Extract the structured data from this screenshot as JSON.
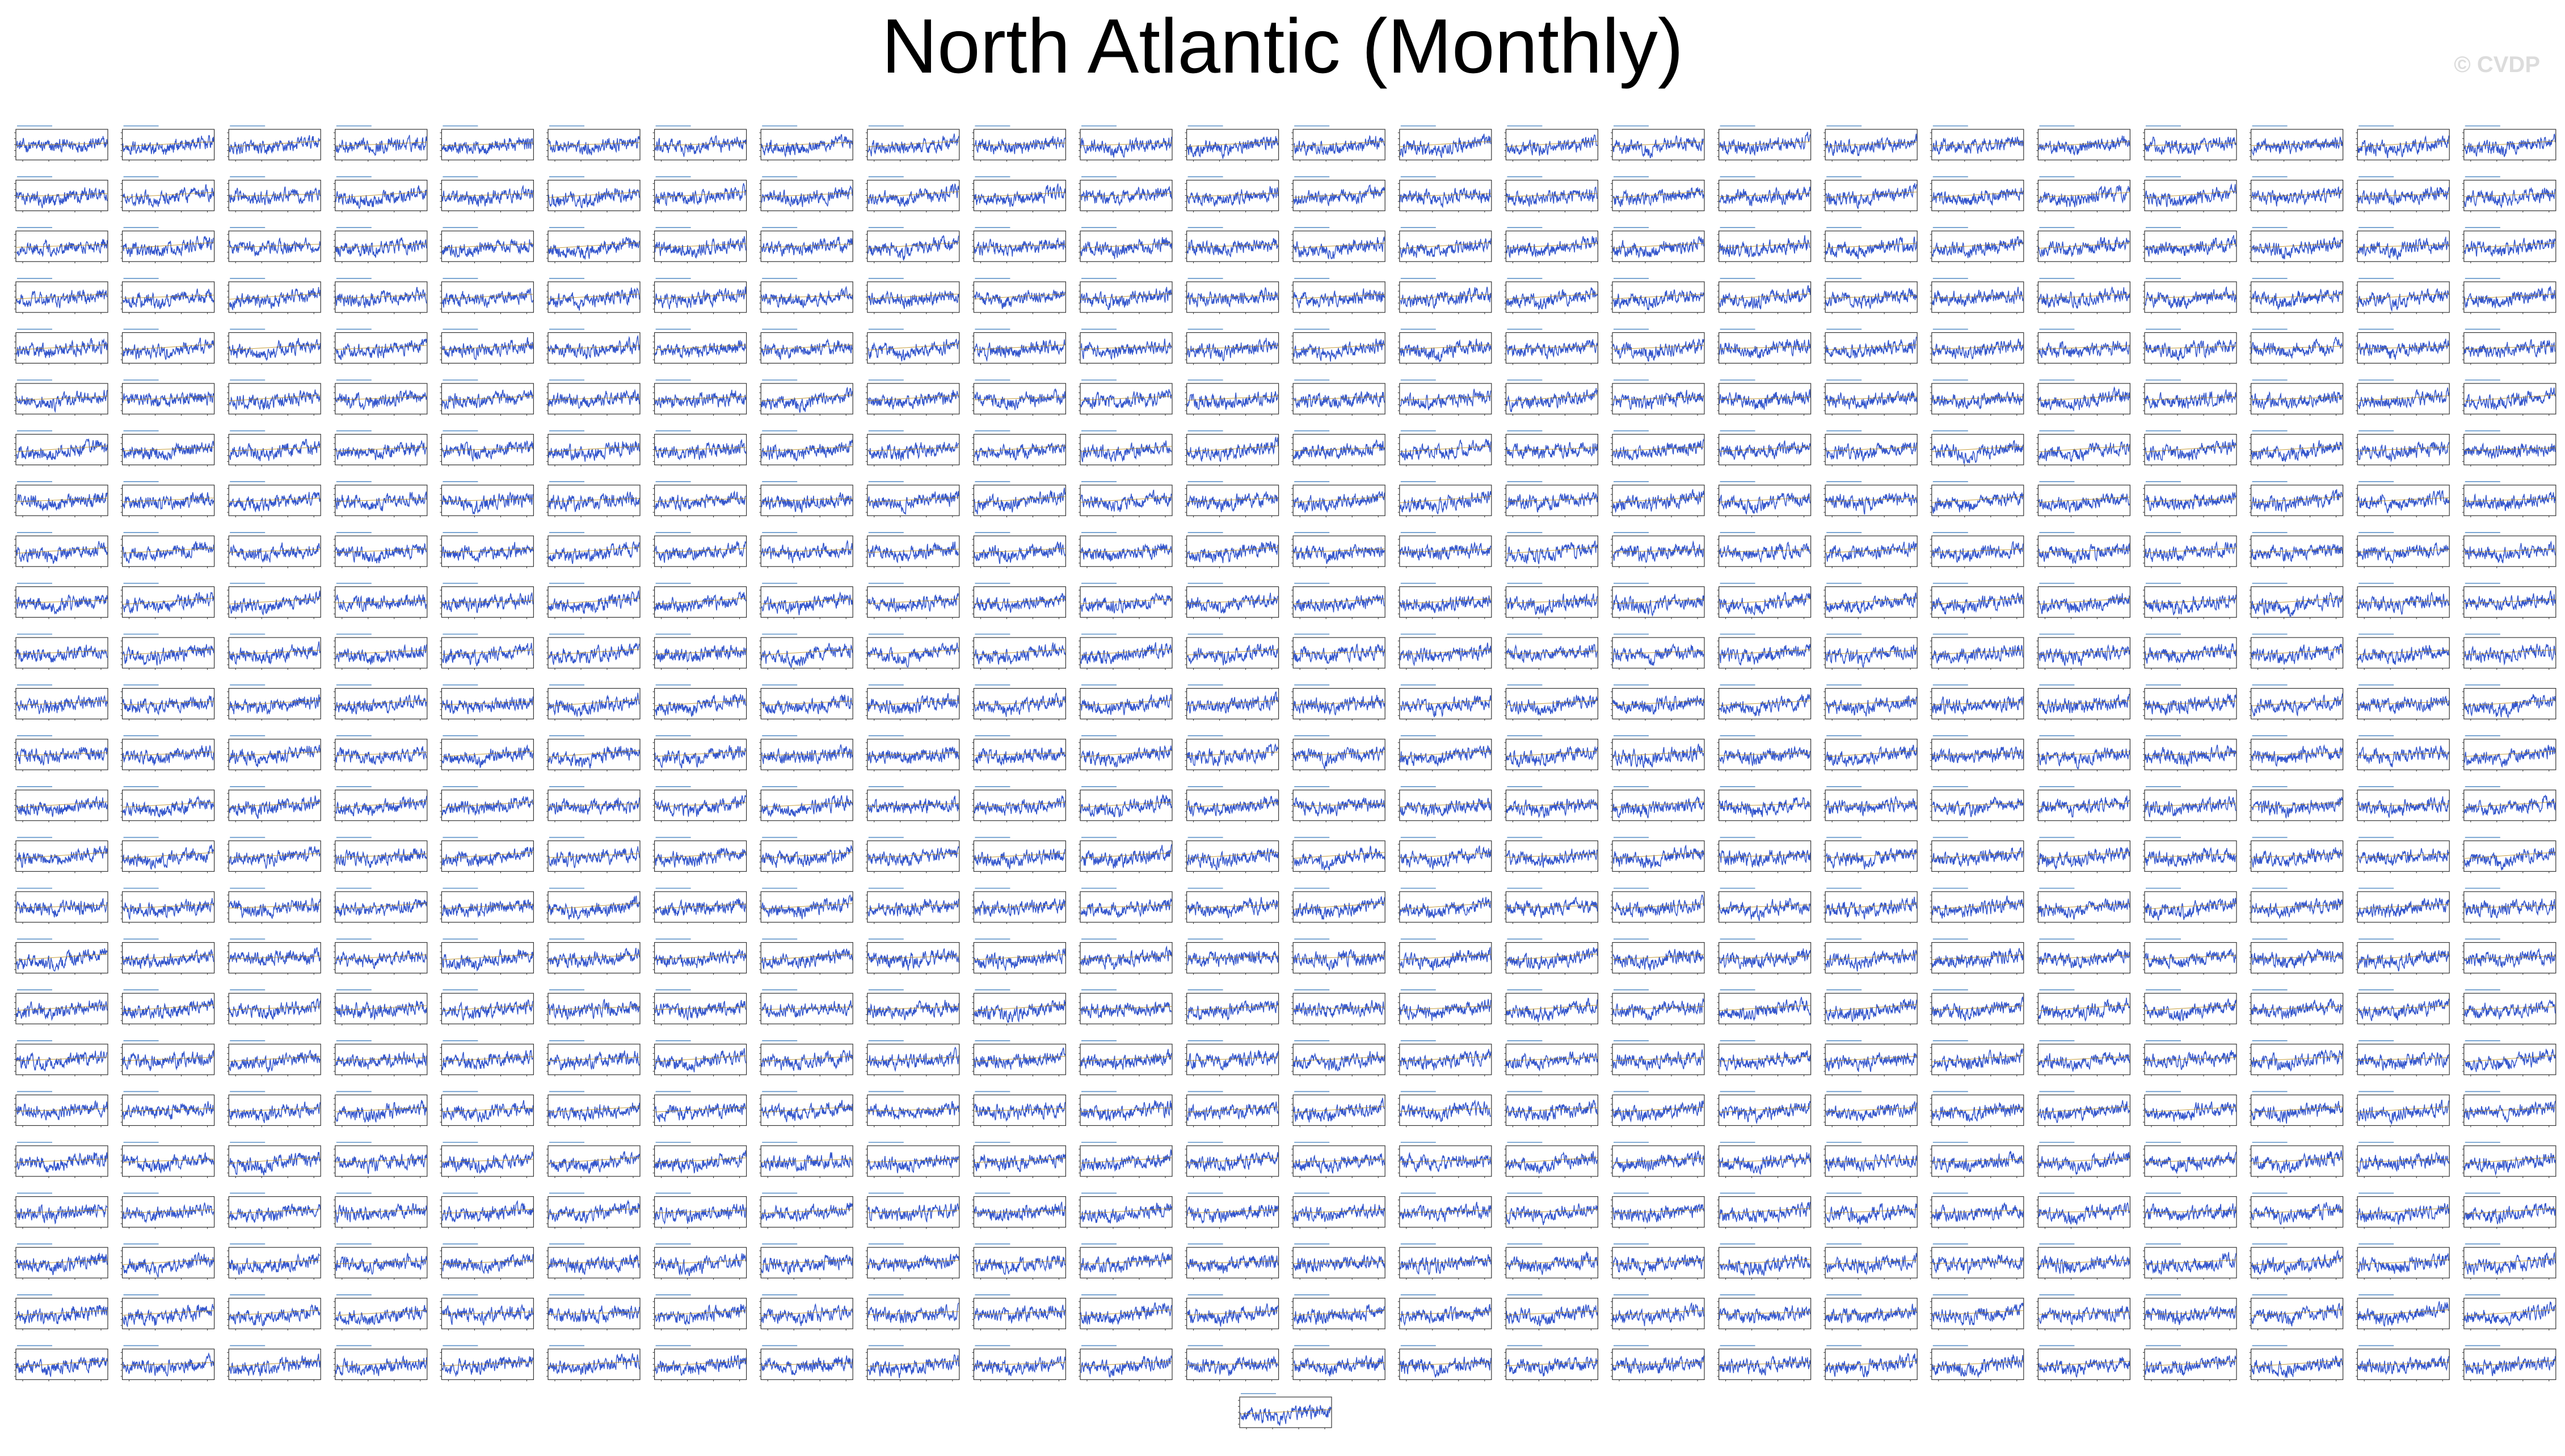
{
  "title": "North Atlantic (Monthly)",
  "watermark": "© CVDP",
  "colors": {
    "series": "#3355cc",
    "trend": "#b8860b",
    "frame": "#333333",
    "title": "#000000",
    "watermark": "#dcdcdc",
    "panel_label": "#1a66b3"
  },
  "chart_data": {
    "type": "line",
    "layout": {
      "rows": 25,
      "cols": 24,
      "extra_panels": 1
    },
    "panel_count": 601,
    "series_per_panel": [
      {
        "role": "monthly anomaly",
        "style": "solid line"
      },
      {
        "role": "linear trend",
        "style": "thin line"
      }
    ],
    "x_tick_count": 4,
    "y_tick_count": 5,
    "overall_shape": "noisy monthly time series with an upward trend toward the end of the record",
    "grid": false
  }
}
